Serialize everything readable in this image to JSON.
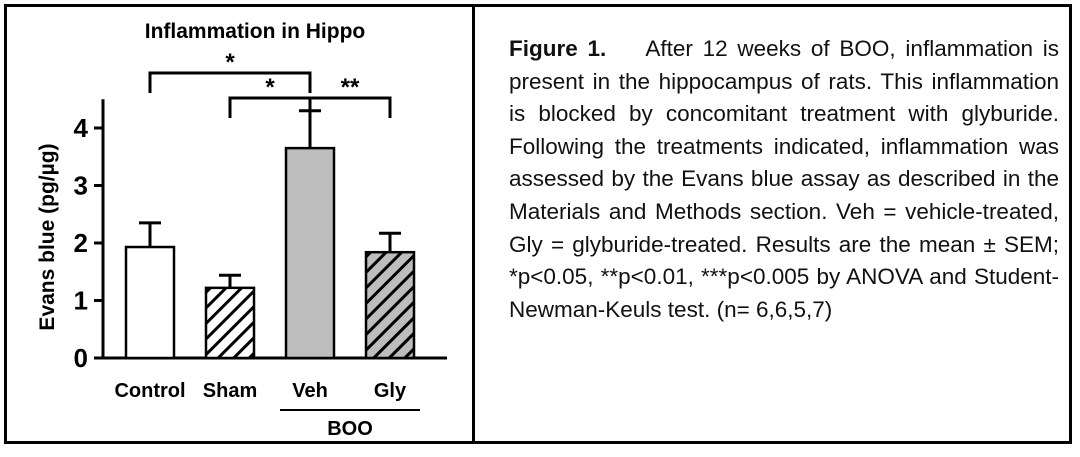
{
  "figure": {
    "caption_label": "Figure 1.",
    "caption_text": "After 12 weeks of BOO, inflammation is present in the hippocampus of rats. This inflammation is blocked by concomitant treatment with glyburide. Following the treatments indicated, inflammation was assessed by the Evans blue assay as described in the Materials and Methods section. Veh = vehicle-treated, Gly = glyburide-treated. Results are the mean ± SEM; *p<0.05, **p<0.01, ***p<0.005 by ANOVA and Student-Newman-Keuls test. (n= 6,6,5,7)"
  },
  "chart_data": {
    "type": "bar",
    "title": "Inflammation in Hippo",
    "ylabel": "Evans blue (pg/µg)",
    "xlabel": "",
    "ylim": [
      0,
      4.5
    ],
    "yticks": [
      0,
      1,
      2,
      3,
      4
    ],
    "categories": [
      "Control",
      "Sham",
      "Veh",
      "Gly"
    ],
    "values": [
      1.93,
      1.22,
      3.65,
      1.84
    ],
    "errors": [
      0.42,
      0.22,
      0.65,
      0.33
    ],
    "fills": [
      "white",
      "hatch-white",
      "#bdbdbd",
      "hatch-gray"
    ],
    "group_label": {
      "text": "BOO",
      "categories": [
        "Veh",
        "Gly"
      ]
    },
    "significance": [
      {
        "from": "Control",
        "to": "Veh",
        "label": "*"
      },
      {
        "from": "Sham",
        "to": "Veh",
        "label": "*"
      },
      {
        "from": "Veh",
        "to": "Gly",
        "label": "**"
      }
    ],
    "colors": {
      "gray_bar": "#bdbdbd",
      "axis": "#000000"
    }
  }
}
